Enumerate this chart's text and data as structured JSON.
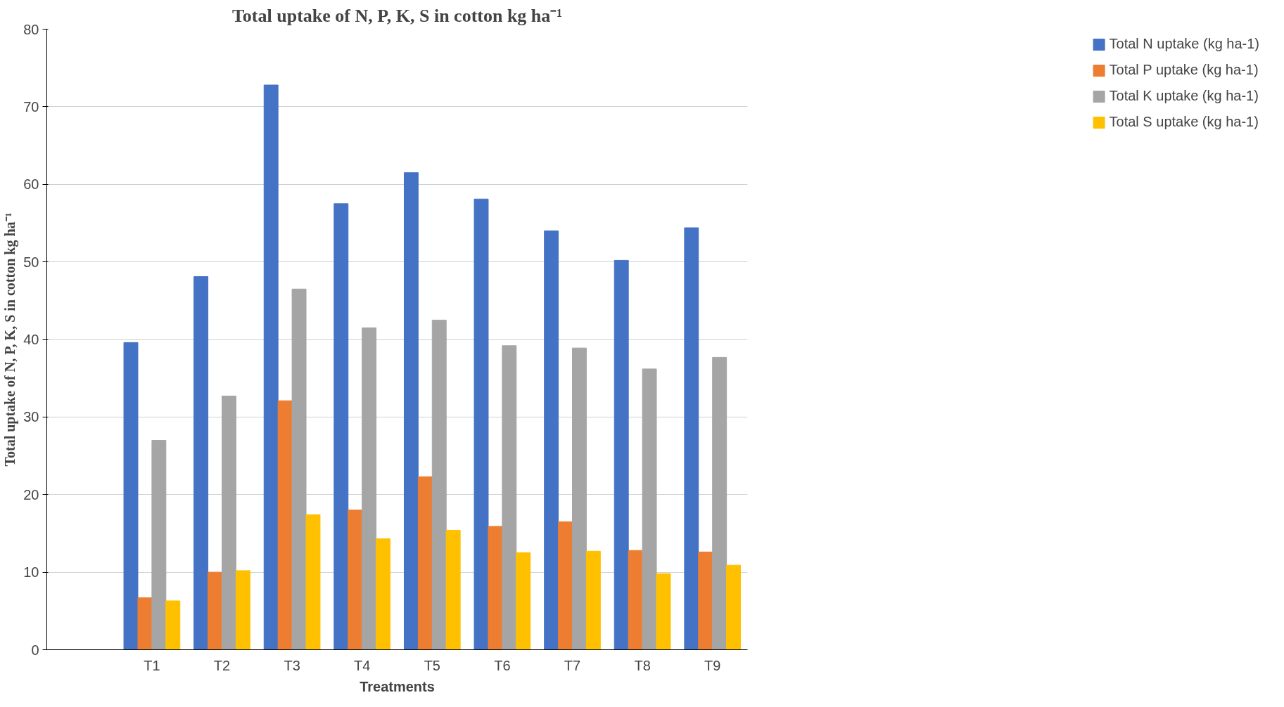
{
  "chart_data": {
    "type": "bar",
    "title": "Total uptake of N, P, K, S in cotton kg ha⁻¹",
    "xlabel": "Treatments",
    "ylabel": "Total uptake of N, P, K, S in cotton kg ha⁻¹",
    "categories": [
      null,
      "T1",
      "T2",
      "T3",
      "T4",
      "T5",
      "T6",
      "T7",
      "T8",
      "T9"
    ],
    "series": [
      {
        "name": "Total N uptake (kg ha-1)",
        "color": "#4472c4",
        "values": [
          null,
          39.6,
          48.1,
          72.8,
          57.5,
          61.5,
          58.1,
          54.0,
          50.2,
          54.4
        ]
      },
      {
        "name": "Total P uptake (kg ha-1)",
        "color": "#ed7d31",
        "values": [
          null,
          6.7,
          10.0,
          32.1,
          18.0,
          22.3,
          15.9,
          16.5,
          12.8,
          12.6
        ]
      },
      {
        "name": "Total K uptake (kg ha-1)",
        "color": "#a5a5a5",
        "values": [
          null,
          27.0,
          32.7,
          46.5,
          41.5,
          42.5,
          39.2,
          38.9,
          36.2,
          37.7
        ]
      },
      {
        "name": "Total S uptake (kg ha-1)",
        "color": "#ffc000",
        "values": [
          null,
          6.3,
          10.2,
          17.4,
          14.3,
          15.4,
          12.5,
          12.7,
          9.8,
          10.9
        ]
      }
    ],
    "ylim": [
      0,
      80
    ],
    "yticks": [
      0,
      10,
      20,
      30,
      40,
      50,
      60,
      70,
      80
    ],
    "grid": "y",
    "legend": "right"
  }
}
